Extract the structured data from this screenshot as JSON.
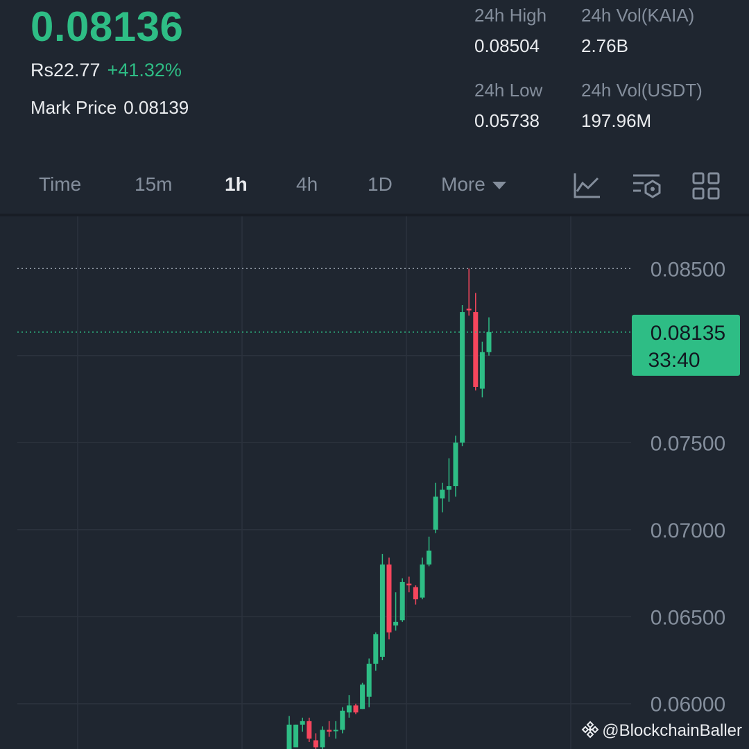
{
  "ticker": {
    "last_price": "0.08136",
    "fiat_price": "Rs22.77",
    "change_percent": "+41.32%",
    "mark_price_label": "Mark Price",
    "mark_price": "0.08139"
  },
  "stats": {
    "high_label": "24h High",
    "high_value": "0.08504",
    "low_label": "24h Low",
    "low_value": "0.05738",
    "vol_base_label": "24h Vol(KAIA)",
    "vol_base_value": "2.76B",
    "vol_quote_label": "24h Vol(USDT)",
    "vol_quote_value": "197.96M"
  },
  "tabs": [
    {
      "label": "Time"
    },
    {
      "label": "15m"
    },
    {
      "label": "1h"
    },
    {
      "label": "4h"
    },
    {
      "label": "1D"
    },
    {
      "label": "More"
    }
  ],
  "active_tab": "1h",
  "toolbar_icons": [
    "indicator-chart-icon",
    "chart-settings-icon",
    "layout-grid-icon"
  ],
  "colors": {
    "up": "#2ebd85",
    "down": "#f6465d",
    "background": "#1f2630",
    "grid": "#2b323d",
    "text_muted": "#848e9c"
  },
  "watermark": "@BlockchainBaller",
  "chart_data": {
    "type": "candlestick",
    "interval": "1h",
    "y_ticks": [
      "0.08500",
      "0.07500",
      "0.07000",
      "0.06500",
      "0.06000"
    ],
    "ylim": [
      0.0574,
      0.088
    ],
    "current_price_label": "0.08135",
    "current_price": 0.08135,
    "countdown": "33:40",
    "high_marker": 0.085,
    "candles": [
      {
        "o": 0.0571,
        "h": 0.0593,
        "l": 0.0567,
        "c": 0.0588
      },
      {
        "o": 0.0575,
        "h": 0.0588,
        "l": 0.0575,
        "c": 0.0588
      },
      {
        "o": 0.0588,
        "h": 0.0592,
        "l": 0.0584,
        "c": 0.059
      },
      {
        "o": 0.059,
        "h": 0.0592,
        "l": 0.0578,
        "c": 0.058
      },
      {
        "o": 0.0579,
        "h": 0.0583,
        "l": 0.0567,
        "c": 0.0575
      },
      {
        "o": 0.0575,
        "h": 0.0587,
        "l": 0.0573,
        "c": 0.0585
      },
      {
        "o": 0.0585,
        "h": 0.059,
        "l": 0.0581,
        "c": 0.0584
      },
      {
        "o": 0.0585,
        "h": 0.059,
        "l": 0.058,
        "c": 0.0585
      },
      {
        "o": 0.0585,
        "h": 0.0598,
        "l": 0.0583,
        "c": 0.0596
      },
      {
        "o": 0.0595,
        "h": 0.0605,
        "l": 0.0592,
        "c": 0.0599
      },
      {
        "o": 0.0599,
        "h": 0.06,
        "l": 0.0594,
        "c": 0.0595
      },
      {
        "o": 0.0597,
        "h": 0.0612,
        "l": 0.0597,
        "c": 0.0611
      },
      {
        "o": 0.0604,
        "h": 0.0626,
        "l": 0.0598,
        "c": 0.0623
      },
      {
        "o": 0.0623,
        "h": 0.0641,
        "l": 0.0619,
        "c": 0.064
      },
      {
        "o": 0.0627,
        "h": 0.0686,
        "l": 0.0625,
        "c": 0.068
      },
      {
        "o": 0.068,
        "h": 0.0684,
        "l": 0.0637,
        "c": 0.0641
      },
      {
        "o": 0.0645,
        "h": 0.0664,
        "l": 0.0642,
        "c": 0.0647
      },
      {
        "o": 0.0648,
        "h": 0.0672,
        "l": 0.0647,
        "c": 0.067
      },
      {
        "o": 0.0669,
        "h": 0.0673,
        "l": 0.0664,
        "c": 0.0668
      },
      {
        "o": 0.0667,
        "h": 0.0668,
        "l": 0.0657,
        "c": 0.066
      },
      {
        "o": 0.0661,
        "h": 0.0684,
        "l": 0.066,
        "c": 0.068
      },
      {
        "o": 0.068,
        "h": 0.0696,
        "l": 0.0679,
        "c": 0.0688
      },
      {
        "o": 0.07,
        "h": 0.0727,
        "l": 0.0698,
        "c": 0.0719
      },
      {
        "o": 0.0718,
        "h": 0.0727,
        "l": 0.071,
        "c": 0.0723
      },
      {
        "o": 0.0723,
        "h": 0.0741,
        "l": 0.0716,
        "c": 0.0725
      },
      {
        "o": 0.0725,
        "h": 0.0754,
        "l": 0.0719,
        "c": 0.075
      },
      {
        "o": 0.075,
        "h": 0.0829,
        "l": 0.0748,
        "c": 0.0825
      },
      {
        "o": 0.0827,
        "h": 0.085,
        "l": 0.0823,
        "c": 0.0826
      },
      {
        "o": 0.0825,
        "h": 0.0836,
        "l": 0.078,
        "c": 0.0782
      },
      {
        "o": 0.0781,
        "h": 0.0808,
        "l": 0.0776,
        "c": 0.0802
      },
      {
        "o": 0.0802,
        "h": 0.0822,
        "l": 0.08,
        "c": 0.08135
      }
    ]
  }
}
